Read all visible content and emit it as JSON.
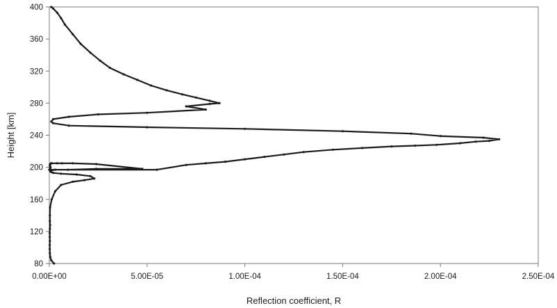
{
  "chart_data": {
    "type": "line",
    "title": "",
    "xlabel": "Reflection coefficient, R",
    "ylabel": "Height [km]",
    "xlim": [
      0,
      0.00025
    ],
    "ylim": [
      80,
      400
    ],
    "x_ticks": [
      0,
      5e-05,
      0.0001,
      0.00015,
      0.0002,
      0.00025
    ],
    "x_tick_labels": [
      "0.00E+00",
      "5.00E-05",
      "1.00E-04",
      "1.50E-04",
      "2.00E-04",
      "2.50E-04"
    ],
    "y_ticks": [
      80,
      120,
      160,
      200,
      240,
      280,
      320,
      360,
      400
    ],
    "y_tick_labels": [
      "80",
      "120",
      "160",
      "200",
      "240",
      "280",
      "320",
      "360",
      "400"
    ],
    "grid": false,
    "legend": "none",
    "line_color": "#1a1a1a",
    "series": [
      {
        "x": [
          2.4e-06,
          1e-06,
          5e-07,
          3e-07,
          2e-07,
          2e-07,
          3e-07,
          2e-07,
          2e-07,
          3e-07,
          4e-07,
          3e-07,
          3e-07,
          4e-07,
          1.2e-06,
          3e-06,
          6e-06,
          1.2e-05,
          1.8e-05,
          2.3e-05,
          2.1e-05,
          1.4e-05,
          6e-06,
          2e-06,
          1e-06,
          6e-07,
          4e-07,
          5e-07,
          4e-07,
          4e-07,
          6e-07,
          4e-07,
          3e-07,
          3e-07,
          5e-07,
          8e-07,
          1.2e-06,
          4e-06,
          6.5e-06,
          1.2e-05,
          2.4e-05,
          4.75e-05,
          2.4e-05,
          9.5e-06,
          3e-06,
          1e-06,
          0.0,
          5e-07,
          5.5e-05,
          7e-05,
          8e-05,
          9e-05,
          0.0001,
          0.00011,
          0.00012,
          0.00013,
          0.000145,
          0.00016,
          0.000175,
          0.000187,
          0.000198,
          0.00021,
          0.000218,
          0.000225,
          0.00023,
          0.000222,
          0.0002,
          0.000185,
          0.00015,
          0.0001,
          5e-05,
          1e-05,
          2e-06,
          1e-06,
          2e-06,
          1e-05,
          2.5e-05,
          5e-05,
          8e-05,
          7e-05,
          8.2e-05,
          8.7e-05,
          8.2e-05,
          7.5e-05,
          6.8e-05,
          6e-05,
          5.2e-05,
          4.5e-05,
          3.8e-05,
          3.1e-05,
          2.6e-05,
          2.1e-05,
          1.6e-05,
          1.2e-05,
          8e-06,
          6e-06,
          4e-06,
          2e-06,
          1e-06
        ],
        "y": [
          80,
          84,
          88,
          93,
          98,
          103,
          108,
          113,
          118,
          123,
          128,
          133,
          140,
          150,
          160,
          170,
          178,
          182,
          184,
          186,
          189,
          191,
          192,
          193,
          194,
          195,
          196,
          197,
          198,
          199,
          200,
          201,
          202,
          203,
          204,
          205,
          205,
          205,
          205,
          205,
          204,
          198,
          198,
          197,
          197,
          196,
          197,
          197,
          197,
          203,
          205,
          207,
          210,
          213,
          216,
          219,
          222,
          224,
          226,
          227,
          228,
          230,
          232,
          233,
          235,
          237,
          239,
          242,
          245,
          248,
          250,
          252,
          255,
          257,
          260,
          263,
          266,
          268,
          272,
          276,
          279,
          280,
          283,
          287,
          291,
          296,
          302,
          309,
          316,
          324,
          333,
          343,
          354,
          366,
          378,
          386,
          393,
          398,
          400
        ]
      }
    ]
  }
}
